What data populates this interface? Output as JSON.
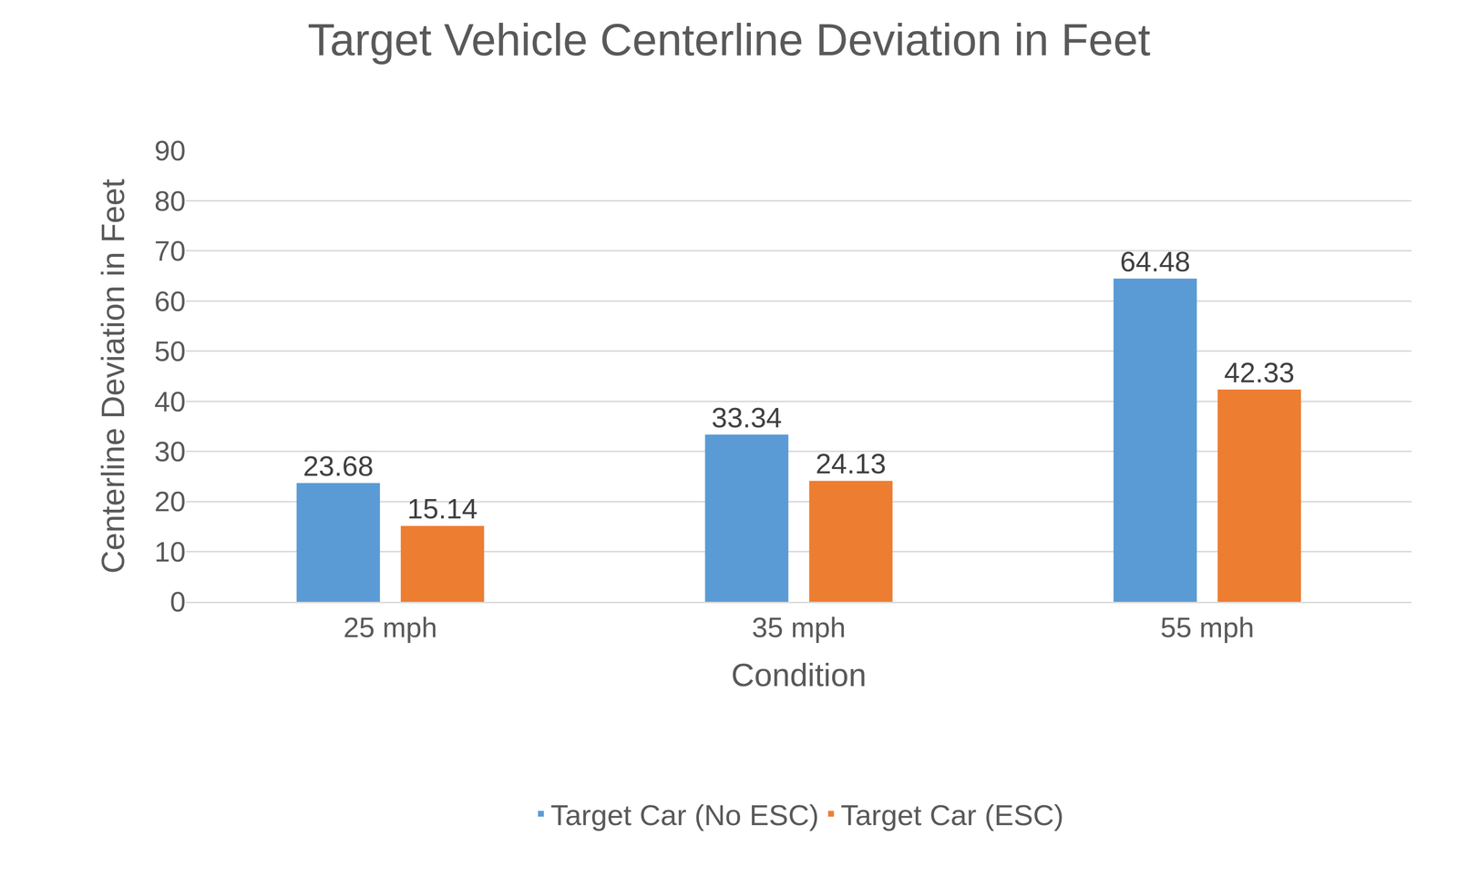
{
  "chart_data": {
    "type": "bar",
    "title": "Target Vehicle Centerline Deviation in Feet",
    "x_label": "Condition",
    "y_label": "Centerline Deviation in Feet",
    "categories": [
      "25 mph",
      "35 mph",
      "55 mph"
    ],
    "series": [
      {
        "name": "Target Car (No ESC)",
        "color": "#5b9bd5",
        "values": [
          23.68,
          33.34,
          64.48
        ]
      },
      {
        "name": "Target Car (ESC)",
        "color": "#ed7d31",
        "values": [
          15.14,
          24.13,
          42.33
        ]
      }
    ],
    "ylim": [
      0,
      90
    ],
    "yticks": [
      0,
      10,
      20,
      30,
      40,
      50,
      60,
      70,
      80,
      90
    ],
    "grid": true,
    "legend": "bottom",
    "data_labels": true
  }
}
